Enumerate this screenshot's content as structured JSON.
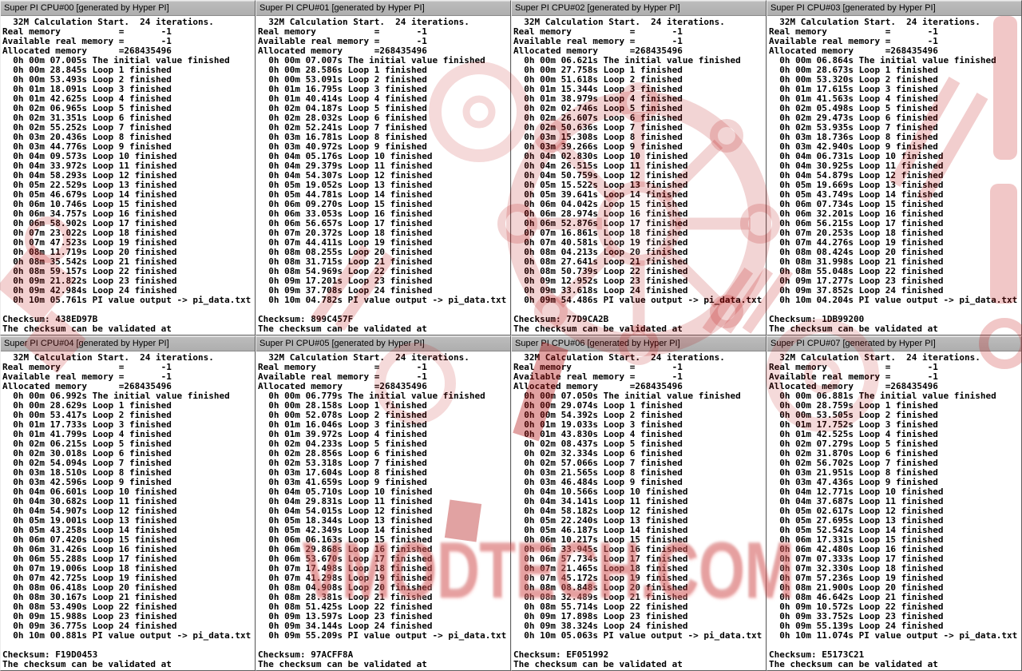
{
  "watermark": {
    "text": "VMODTECH.COM",
    "color": "#bb0000"
  },
  "windows": [
    {
      "title": "Super PI CPU#00 [generated by Hyper PI]",
      "lines": [
        "  32M Calculation Start.  24 iterations.",
        "Real memory           =       -1",
        "Available real memory =       -1",
        "Allocated memory      =268435496",
        "  0h 00m 07.005s The initial value finished",
        "  0h 00m 28.845s Loop 1 finished",
        "  0h 00m 53.493s Loop 2 finished",
        "  0h 01m 18.091s Loop 3 finished",
        "  0h 01m 42.625s Loop 4 finished",
        "  0h 02m 06.965s Loop 5 finished",
        "  0h 02m 31.351s Loop 6 finished",
        "  0h 02m 55.252s Loop 7 finished",
        "  0h 03m 20.436s Loop 8 finished",
        "  0h 03m 44.776s Loop 9 finished",
        "  0h 04m 09.573s Loop 10 finished",
        "  0h 04m 33.972s Loop 11 finished",
        "  0h 04m 58.293s Loop 12 finished",
        "  0h 05m 22.529s Loop 13 finished",
        "  0h 05m 46.679s Loop 14 finished",
        "  0h 06m 10.746s Loop 15 finished",
        "  0h 06m 34.757s Loop 16 finished",
        "  0h 06m 58.902s Loop 17 finished",
        "  0h 07m 23.022s Loop 18 finished",
        "  0h 07m 47.523s Loop 19 finished",
        "  0h 08m 11.719s Loop 20 finished",
        "  0h 08m 35.542s Loop 21 finished",
        "  0h 08m 59.157s Loop 22 finished",
        "  0h 09m 21.822s Loop 23 finished",
        "  0h 09m 42.984s Loop 24 finished",
        "  0h 10m 05.761s PI value output -> pi_data.txt",
        "",
        "Checksum: 438ED97B",
        "The checksum can be validated at"
      ]
    },
    {
      "title": "Super PI CPU#01 [generated by Hyper PI]",
      "lines": [
        "  32M Calculation Start.  24 iterations.",
        "Real memory           =       -1",
        "Available real memory =       -1",
        "Allocated memory      =268435496",
        "  0h 00m 07.007s The initial value finished",
        "  0h 00m 28.586s Loop 1 finished",
        "  0h 00m 53.091s Loop 2 finished",
        "  0h 01m 16.795s Loop 3 finished",
        "  0h 01m 40.414s Loop 4 finished",
        "  0h 02m 04.187s Loop 5 finished",
        "  0h 02m 28.032s Loop 6 finished",
        "  0h 02m 52.241s Loop 7 finished",
        "  0h 03m 16.781s Loop 8 finished",
        "  0h 03m 40.972s Loop 9 finished",
        "  0h 04m 05.176s Loop 10 finished",
        "  0h 04m 29.379s Loop 11 finished",
        "  0h 04m 54.307s Loop 12 finished",
        "  0h 05m 19.052s Loop 13 finished",
        "  0h 05m 44.781s Loop 14 finished",
        "  0h 06m 09.270s Loop 15 finished",
        "  0h 06m 33.053s Loop 16 finished",
        "  0h 06m 56.657s Loop 17 finished",
        "  0h 07m 20.372s Loop 18 finished",
        "  0h 07m 44.411s Loop 19 finished",
        "  0h 08m 08.255s Loop 20 finished",
        "  0h 08m 31.715s Loop 21 finished",
        "  0h 08m 54.969s Loop 22 finished",
        "  0h 09m 17.201s Loop 23 finished",
        "  0h 09m 37.708s Loop 24 finished",
        "  0h 10m 04.782s PI value output -> pi_data.txt",
        "",
        "Checksum: 899C457F",
        "The checksum can be validated at"
      ]
    },
    {
      "title": "Super PI CPU#02 [generated by Hyper PI]",
      "lines": [
        "  32M Calculation Start.  24 iterations.",
        "Real memory           =       -1",
        "Available real memory =       -1",
        "Allocated memory      =268435496",
        "  0h 00m 06.621s The initial value finished",
        "  0h 00m 27.758s Loop 1 finished",
        "  0h 00m 51.618s Loop 2 finished",
        "  0h 01m 15.344s Loop 3 finished",
        "  0h 01m 38.979s Loop 4 finished",
        "  0h 02m 02.746s Loop 5 finished",
        "  0h 02m 26.607s Loop 6 finished",
        "  0h 02m 50.636s Loop 7 finished",
        "  0h 03m 15.308s Loop 8 finished",
        "  0h 03m 39.266s Loop 9 finished",
        "  0h 04m 02.830s Loop 10 finished",
        "  0h 04m 26.515s Loop 11 finished",
        "  0h 04m 50.759s Loop 12 finished",
        "  0h 05m 15.522s Loop 13 finished",
        "  0h 05m 39.641s Loop 14 finished",
        "  0h 06m 04.042s Loop 15 finished",
        "  0h 06m 28.974s Loop 16 finished",
        "  0h 06m 52.876s Loop 17 finished",
        "  0h 07m 16.861s Loop 18 finished",
        "  0h 07m 40.581s Loop 19 finished",
        "  0h 08m 04.213s Loop 20 finished",
        "  0h 08m 27.641s Loop 21 finished",
        "  0h 08m 50.739s Loop 22 finished",
        "  0h 09m 12.952s Loop 23 finished",
        "  0h 09m 33.618s Loop 24 finished",
        "  0h 09m 54.486s PI value output -> pi_data.txt",
        "",
        "Checksum: 77D9CA2B",
        "The checksum can be validated at"
      ]
    },
    {
      "title": "Super PI CPU#03 [generated by Hyper PI]",
      "lines": [
        "  32M Calculation Start.  24 iterations.",
        "Real memory           =       -1",
        "Available real memory =       -1",
        "Allocated memory      =268435496",
        "  0h 00m 06.864s The initial value finished",
        "  0h 00m 28.673s Loop 1 finished",
        "  0h 00m 53.320s Loop 2 finished",
        "  0h 01m 17.615s Loop 3 finished",
        "  0h 01m 41.563s Loop 4 finished",
        "  0h 02m 05.498s Loop 5 finished",
        "  0h 02m 29.473s Loop 6 finished",
        "  0h 02m 53.935s Loop 7 finished",
        "  0h 03m 18.736s Loop 8 finished",
        "  0h 03m 42.940s Loop 9 finished",
        "  0h 04m 06.731s Loop 10 finished",
        "  0h 04m 30.925s Loop 11 finished",
        "  0h 04m 54.879s Loop 12 finished",
        "  0h 05m 19.669s Loop 13 finished",
        "  0h 05m 43.749s Loop 14 finished",
        "  0h 06m 07.734s Loop 15 finished",
        "  0h 06m 32.201s Loop 16 finished",
        "  0h 06m 56.215s Loop 17 finished",
        "  0h 07m 20.253s Loop 18 finished",
        "  0h 07m 44.276s Loop 19 finished",
        "  0h 08m 08.424s Loop 20 finished",
        "  0h 08m 31.998s Loop 21 finished",
        "  0h 08m 55.048s Loop 22 finished",
        "  0h 09m 17.277s Loop 23 finished",
        "  0h 09m 37.852s Loop 24 finished",
        "  0h 10m 04.204s PI value output -> pi_data.txt",
        "",
        "Checksum: 1DB99200",
        "The checksum can be validated at"
      ]
    },
    {
      "title": "Super PI CPU#04 [generated by Hyper PI]",
      "lines": [
        "  32M Calculation Start.  24 iterations.",
        "Real memory           =       -1",
        "Available real memory =       -1",
        "Allocated memory      =268435496",
        "  0h 00m 06.992s The initial value finished",
        "  0h 00m 28.629s Loop 1 finished",
        "  0h 00m 53.417s Loop 2 finished",
        "  0h 01m 17.733s Loop 3 finished",
        "  0h 01m 41.799s Loop 4 finished",
        "  0h 02m 06.215s Loop 5 finished",
        "  0h 02m 30.018s Loop 6 finished",
        "  0h 02m 54.094s Loop 7 finished",
        "  0h 03m 18.510s Loop 8 finished",
        "  0h 03m 42.596s Loop 9 finished",
        "  0h 04m 06.601s Loop 10 finished",
        "  0h 04m 30.682s Loop 11 finished",
        "  0h 04m 54.907s Loop 12 finished",
        "  0h 05m 19.001s Loop 13 finished",
        "  0h 05m 43.258s Loop 14 finished",
        "  0h 06m 07.420s Loop 15 finished",
        "  0h 06m 31.426s Loop 16 finished",
        "  0h 06m 55.288s Loop 17 finished",
        "  0h 07m 19.006s Loop 18 finished",
        "  0h 07m 42.725s Loop 19 finished",
        "  0h 08m 06.418s Loop 20 finished",
        "  0h 08m 30.167s Loop 21 finished",
        "  0h 08m 53.490s Loop 22 finished",
        "  0h 09m 15.988s Loop 23 finished",
        "  0h 09m 36.775s Loop 24 finished",
        "  0h 10m 00.881s PI value output -> pi_data.txt",
        "",
        "Checksum: F19D0453",
        "The checksum can be validated at"
      ]
    },
    {
      "title": "Super PI CPU#05 [generated by Hyper PI]",
      "lines": [
        "  32M Calculation Start.  24 iterations.",
        "Real memory           =       -1",
        "Available real memory =       -1",
        "Allocated memory      =268435496",
        "  0h 00m 06.779s The initial value finished",
        "  0h 00m 28.158s Loop 1 finished",
        "  0h 00m 52.078s Loop 2 finished",
        "  0h 01m 16.046s Loop 3 finished",
        "  0h 01m 39.972s Loop 4 finished",
        "  0h 02m 04.233s Loop 5 finished",
        "  0h 02m 28.856s Loop 6 finished",
        "  0h 02m 53.318s Loop 7 finished",
        "  0h 03m 17.604s Loop 8 finished",
        "  0h 03m 41.659s Loop 9 finished",
        "  0h 04m 05.710s Loop 10 finished",
        "  0h 04m 29.831s Loop 11 finished",
        "  0h 04m 54.015s Loop 12 finished",
        "  0h 05m 18.344s Loop 13 finished",
        "  0h 05m 42.349s Loop 14 finished",
        "  0h 06m 06.163s Loop 15 finished",
        "  0h 06m 29.868s Loop 16 finished",
        "  0h 06m 53.670s Loop 17 finished",
        "  0h 07m 17.498s Loop 18 finished",
        "  0h 07m 41.298s Loop 19 finished",
        "  0h 08m 04.908s Loop 20 finished",
        "  0h 08m 28.381s Loop 21 finished",
        "  0h 08m 51.425s Loop 22 finished",
        "  0h 09m 13.597s Loop 23 finished",
        "  0h 09m 34.144s Loop 24 finished",
        "  0h 09m 55.209s PI value output -> pi_data.txt",
        "",
        "Checksum: 97ACFF8A",
        "The checksum can be validated at"
      ]
    },
    {
      "title": "Super PI CPU#06 [generated by Hyper PI]",
      "lines": [
        "  32M Calculation Start.  24 iterations.",
        "Real memory           =       -1",
        "Available real memory =       -1",
        "Allocated memory      =268435496",
        "  0h 00m 07.050s The initial value finished",
        "  0h 00m 29.074s Loop 1 finished",
        "  0h 00m 54.392s Loop 2 finished",
        "  0h 01m 19.033s Loop 3 finished",
        "  0h 01m 43.830s Loop 4 finished",
        "  0h 02m 08.437s Loop 5 finished",
        "  0h 02m 32.334s Loop 6 finished",
        "  0h 02m 57.066s Loop 7 finished",
        "  0h 03m 21.565s Loop 8 finished",
        "  0h 03m 46.484s Loop 9 finished",
        "  0h 04m 10.566s Loop 10 finished",
        "  0h 04m 34.141s Loop 11 finished",
        "  0h 04m 58.182s Loop 12 finished",
        "  0h 05m 22.240s Loop 13 finished",
        "  0h 05m 46.187s Loop 14 finished",
        "  0h 06m 10.217s Loop 15 finished",
        "  0h 06m 33.945s Loop 16 finished",
        "  0h 06m 57.734s Loop 17 finished",
        "  0h 07m 21.465s Loop 18 finished",
        "  0h 07m 45.172s Loop 19 finished",
        "  0h 08m 08.848s Loop 20 finished",
        "  0h 08m 32.489s Loop 21 finished",
        "  0h 08m 55.714s Loop 22 finished",
        "  0h 09m 17.898s Loop 23 finished",
        "  0h 09m 38.324s Loop 24 finished",
        "  0h 10m 05.063s PI value output -> pi_data.txt",
        "",
        "Checksum: EF051992",
        "The checksum can be validated at"
      ]
    },
    {
      "title": "Super PI CPU#07 [generated by Hyper PI]",
      "lines": [
        "  32M Calculation Start.  24 iterations.",
        "Real memory           =       -1",
        "Available real memory =       -1",
        "Allocated memory      =268435496",
        "  0h 00m 06.881s The initial value finished",
        "  0h 00m 28.759s Loop 1 finished",
        "  0h 00m 53.505s Loop 2 finished",
        "  0h 01m 17.752s Loop 3 finished",
        "  0h 01m 42.525s Loop 4 finished",
        "  0h 02m 07.279s Loop 5 finished",
        "  0h 02m 31.870s Loop 6 finished",
        "  0h 02m 56.702s Loop 7 finished",
        "  0h 03m 21.951s Loop 8 finished",
        "  0h 03m 47.436s Loop 9 finished",
        "  0h 04m 12.771s Loop 10 finished",
        "  0h 04m 37.687s Loop 11 finished",
        "  0h 05m 02.617s Loop 12 finished",
        "  0h 05m 27.695s Loop 13 finished",
        "  0h 05m 52.542s Loop 14 finished",
        "  0h 06m 17.331s Loop 15 finished",
        "  0h 06m 42.480s Loop 16 finished",
        "  0h 07m 07.333s Loop 17 finished",
        "  0h 07m 32.330s Loop 18 finished",
        "  0h 07m 57.236s Loop 19 finished",
        "  0h 08m 21.900s Loop 20 finished",
        "  0h 08m 46.642s Loop 21 finished",
        "  0h 09m 10.572s Loop 22 finished",
        "  0h 09m 33.752s Loop 23 finished",
        "  0h 09m 55.139s Loop 24 finished",
        "  0h 10m 11.074s PI value output -> pi_data.txt",
        "",
        "Checksum: E5173C21",
        "The checksum can be validated at"
      ]
    }
  ]
}
